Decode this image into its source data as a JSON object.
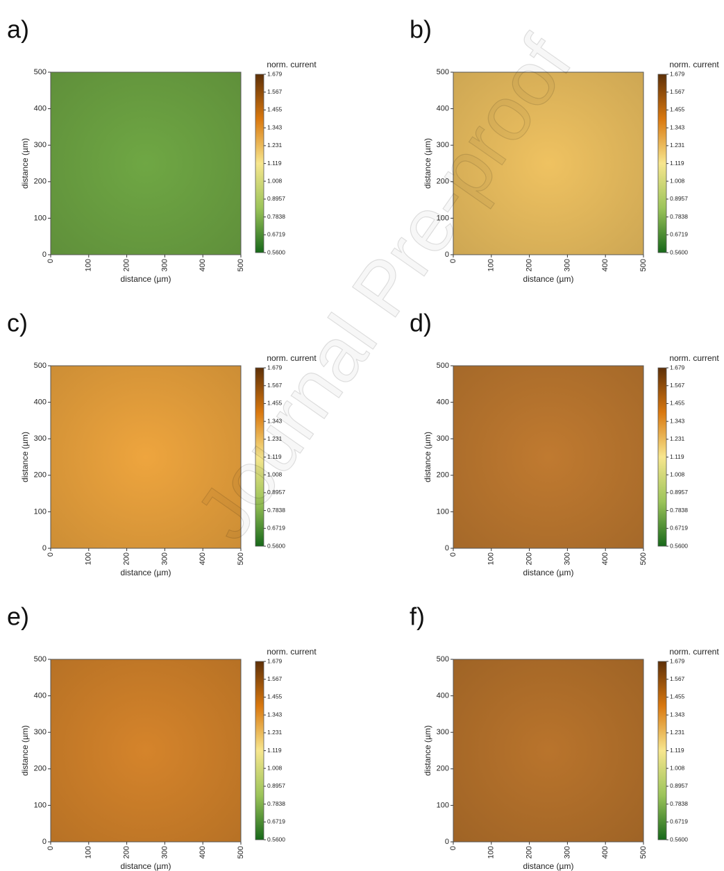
{
  "watermark": "Journal Pre-proof",
  "chart_data": [
    {
      "type": "heatmap",
      "label": "a)",
      "xlabel": "distance (µm)",
      "ylabel": "distance (µm)",
      "xlim": [
        0,
        500
      ],
      "ylim": [
        0,
        500
      ],
      "xticks": [
        0,
        100,
        200,
        300,
        400,
        500
      ],
      "yticks": [
        0,
        100,
        200,
        300,
        400,
        500
      ],
      "color": "#6fa744",
      "colorbar": {
        "title": "norm. current",
        "lim": [
          0.56,
          1.679
        ],
        "colors": [
          "#5e3008",
          "#d9780f",
          "#f7e68e",
          "#9cc45a",
          "#17681a"
        ],
        "ticks": [
          1.679,
          1.567,
          1.455,
          1.343,
          1.231,
          1.119,
          1.008,
          0.8957,
          0.7838,
          0.6719,
          {
            "value": 0.56,
            "label": "0.5600"
          }
        ]
      }
    },
    {
      "type": "heatmap",
      "label": "b)",
      "xlabel": "distance (µm)",
      "ylabel": "distance (µm)",
      "xlim": [
        0,
        500
      ],
      "ylim": [
        0,
        500
      ],
      "xticks": [
        0,
        100,
        200,
        300,
        400,
        500
      ],
      "yticks": [
        0,
        100,
        200,
        300,
        400,
        500
      ],
      "color": "#efc261",
      "colorbar": {
        "title": "norm. current",
        "lim": [
          0.56,
          1.679
        ],
        "colors": [
          "#5e3008",
          "#d9780f",
          "#f7e68e",
          "#9cc45a",
          "#17681a"
        ],
        "ticks": [
          1.679,
          1.567,
          1.455,
          1.343,
          1.231,
          1.119,
          1.008,
          0.8957,
          0.7838,
          0.6719,
          {
            "value": 0.56,
            "label": "0.5600"
          }
        ]
      }
    },
    {
      "type": "heatmap",
      "label": "c)",
      "xlabel": "distance (µm)",
      "ylabel": "distance (µm)",
      "xlim": [
        0,
        500
      ],
      "ylim": [
        0,
        500
      ],
      "xticks": [
        0,
        100,
        200,
        300,
        400,
        500
      ],
      "yticks": [
        0,
        100,
        200,
        300,
        400,
        500
      ],
      "color": "#eea53e",
      "colorbar": {
        "title": "norm. current",
        "lim": [
          0.56,
          1.679
        ],
        "colors": [
          "#5e3008",
          "#d9780f",
          "#f7e68e",
          "#9cc45a",
          "#17681a"
        ],
        "ticks": [
          1.679,
          1.567,
          1.455,
          1.343,
          1.231,
          1.119,
          1.008,
          0.8957,
          0.7838,
          0.6719,
          {
            "value": 0.56,
            "label": "0.5600"
          }
        ]
      }
    },
    {
      "type": "heatmap",
      "label": "d)",
      "xlabel": "distance (µm)",
      "ylabel": "distance (µm)",
      "xlim": [
        0,
        500
      ],
      "ylim": [
        0,
        500
      ],
      "xticks": [
        0,
        100,
        200,
        300,
        400,
        500
      ],
      "yticks": [
        0,
        100,
        200,
        300,
        400,
        500
      ],
      "color": "#c07a30",
      "colorbar": {
        "title": "norm. current",
        "lim": [
          0.56,
          1.679
        ],
        "colors": [
          "#5e3008",
          "#d9780f",
          "#f7e68e",
          "#9cc45a",
          "#17681a"
        ],
        "ticks": [
          1.679,
          1.567,
          1.455,
          1.343,
          1.231,
          1.119,
          1.008,
          0.8957,
          0.7838,
          0.6719,
          {
            "value": 0.56,
            "label": "0.5600"
          }
        ]
      }
    },
    {
      "type": "heatmap",
      "label": "e)",
      "xlabel": "distance (µm)",
      "ylabel": "distance (µm)",
      "xlim": [
        0,
        500
      ],
      "ylim": [
        0,
        500
      ],
      "xticks": [
        0,
        100,
        200,
        300,
        400,
        500
      ],
      "yticks": [
        0,
        100,
        200,
        300,
        400,
        500
      ],
      "color": "#d5842b",
      "colorbar": {
        "title": "norm. current",
        "lim": [
          0.56,
          1.679
        ],
        "colors": [
          "#5e3008",
          "#d9780f",
          "#f7e68e",
          "#9cc45a",
          "#17681a"
        ],
        "ticks": [
          1.679,
          1.567,
          1.455,
          1.343,
          1.231,
          1.119,
          1.008,
          0.8957,
          0.7838,
          0.6719,
          {
            "value": 0.56,
            "label": "0.5600"
          }
        ]
      }
    },
    {
      "type": "heatmap",
      "label": "f)",
      "xlabel": "distance (µm)",
      "ylabel": "distance (µm)",
      "xlim": [
        0,
        500
      ],
      "ylim": [
        0,
        500
      ],
      "xticks": [
        0,
        100,
        200,
        300,
        400,
        500
      ],
      "yticks": [
        0,
        100,
        200,
        300,
        400,
        500
      ],
      "color": "#b9742c",
      "colorbar": {
        "title": "norm. current",
        "lim": [
          0.56,
          1.679
        ],
        "colors": [
          "#5e3008",
          "#d9780f",
          "#f7e68e",
          "#9cc45a",
          "#17681a"
        ],
        "ticks": [
          1.679,
          1.567,
          1.455,
          1.343,
          1.231,
          1.119,
          1.008,
          0.8957,
          0.7838,
          0.6719,
          {
            "value": 0.56,
            "label": "0.5600"
          }
        ]
      }
    }
  ]
}
